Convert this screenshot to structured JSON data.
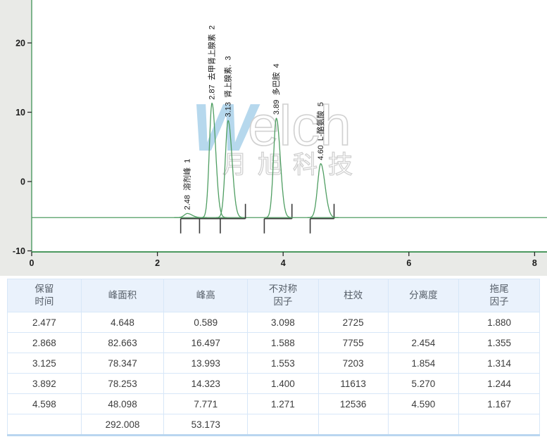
{
  "watermark": {
    "latin": "Welch",
    "cn": "月旭科技"
  },
  "chart_data": {
    "type": "line",
    "title": "",
    "xlabel": "",
    "ylabel": "",
    "x_ticks": [
      0,
      2,
      4,
      6,
      8
    ],
    "y_ticks": [
      20,
      10,
      0,
      -10
    ],
    "xlim": [
      0,
      8.2
    ],
    "ylim": [
      -10,
      26
    ],
    "grid": false,
    "legend": false,
    "baseline": -5.2,
    "colors": {
      "trace": "#4f9e62",
      "axis": "#4c9960",
      "margin_bg": "#e9eae7",
      "plot_bg": "#ffffff",
      "integration": "#3a3a3a",
      "tick": "#2a2a2a",
      "watermark_blue": "#8fc3e4",
      "watermark_gray": "#c5c5c5"
    },
    "peaks": [
      {
        "rt": 2.477,
        "height": 0.589,
        "sigma_left": 0.05,
        "sigma_right": 0.075,
        "label": "2.48  溶剂峰  1"
      },
      {
        "rt": 2.868,
        "height": 16.497,
        "sigma_left": 0.042,
        "sigma_right": 0.058,
        "label": "2.87  去甲肾上腺素  2"
      },
      {
        "rt": 3.125,
        "height": 13.993,
        "sigma_left": 0.045,
        "sigma_right": 0.062,
        "label": "3.13  肾上腺素.  3"
      },
      {
        "rt": 3.892,
        "height": 14.323,
        "sigma_left": 0.045,
        "sigma_right": 0.062,
        "label": "3.89  多巴胺  4"
      },
      {
        "rt": 4.598,
        "height": 7.771,
        "sigma_left": 0.05,
        "sigma_right": 0.068,
        "label": "4.60  L-酪氨酸  5"
      }
    ],
    "integration": [
      {
        "start": 2.37,
        "end": 3.4,
        "downs": [
          2.37,
          2.67,
          3.0
        ],
        "ups": [
          3.4
        ]
      },
      {
        "start": 3.7,
        "end": 4.14,
        "downs": [
          3.7
        ],
        "ups": [
          4.14
        ]
      },
      {
        "start": 4.43,
        "end": 4.81,
        "downs": [
          4.43
        ],
        "ups": [
          4.81
        ]
      }
    ]
  },
  "table": {
    "headers": [
      "保留\n时间",
      "峰面积",
      "峰高",
      "不对称\n因子",
      "柱效",
      "分离度",
      "拖尾\n因子"
    ],
    "rows": [
      [
        "2.477",
        "4.648",
        "0.589",
        "3.098",
        "2725",
        "",
        "1.880"
      ],
      [
        "2.868",
        "82.663",
        "16.497",
        "1.588",
        "7755",
        "2.454",
        "1.355"
      ],
      [
        "3.125",
        "78.347",
        "13.993",
        "1.553",
        "7203",
        "1.854",
        "1.314"
      ],
      [
        "3.892",
        "78.253",
        "14.323",
        "1.400",
        "11613",
        "5.270",
        "1.244"
      ],
      [
        "4.598",
        "48.098",
        "7.771",
        "1.271",
        "12536",
        "4.590",
        "1.167"
      ],
      [
        "",
        "292.008",
        "53.173",
        "",
        "",
        "",
        ""
      ]
    ]
  }
}
